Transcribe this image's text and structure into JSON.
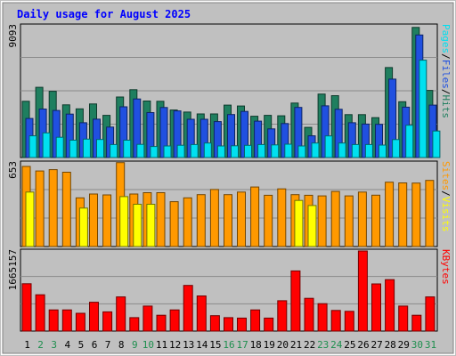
{
  "chart_data": [
    {
      "type": "bar",
      "title": "Daily usage for August 2025",
      "ymax_label": "9093",
      "ylim": [
        0,
        9093
      ],
      "categories": [
        "1",
        "2",
        "3",
        "4",
        "5",
        "6",
        "7",
        "8",
        "9",
        "10",
        "11",
        "12",
        "13",
        "14",
        "15",
        "16",
        "17",
        "18",
        "19",
        "20",
        "21",
        "22",
        "23",
        "24",
        "25",
        "26",
        "27",
        "28",
        "29",
        "30",
        "31"
      ],
      "series": [
        {
          "name": "Hits",
          "color": "#1f7f5f",
          "values": [
            3880,
            4850,
            4570,
            3640,
            3360,
            3700,
            2910,
            4180,
            4680,
            3900,
            3880,
            3280,
            3140,
            3010,
            3010,
            3620,
            3560,
            2850,
            2910,
            2880,
            3760,
            2080,
            4380,
            4270,
            2960,
            2960,
            2750,
            6210,
            3850,
            8980,
            4630
          ]
        },
        {
          "name": "Files",
          "color": "#2050e0",
          "values": [
            2700,
            3350,
            3250,
            3000,
            2400,
            2650,
            2100,
            3500,
            4040,
            3100,
            3450,
            3220,
            2640,
            2640,
            2480,
            2970,
            3180,
            2510,
            1980,
            2350,
            3460,
            1500,
            3570,
            3330,
            2400,
            2310,
            2290,
            5410,
            3480,
            8460,
            3620
          ]
        },
        {
          "name": "Pages",
          "color": "#00e0f0",
          "values": [
            1500,
            1700,
            1400,
            1200,
            1270,
            1250,
            900,
            1200,
            910,
            760,
            800,
            850,
            900,
            1000,
            800,
            810,
            840,
            900,
            870,
            920,
            800,
            1000,
            1490,
            1000,
            900,
            900,
            860,
            1240,
            2230,
            6720,
            1830
          ]
        }
      ],
      "series_labels": [
        "Pages",
        "Files",
        "Hits"
      ],
      "sep": "/"
    },
    {
      "type": "bar",
      "ymax_label": "653",
      "ylim": [
        0,
        653
      ],
      "categories": [
        "1",
        "2",
        "3",
        "4",
        "5",
        "6",
        "7",
        "8",
        "9",
        "10",
        "11",
        "12",
        "13",
        "14",
        "15",
        "16",
        "17",
        "18",
        "19",
        "20",
        "21",
        "22",
        "23",
        "24",
        "25",
        "26",
        "27",
        "28",
        "29",
        "30",
        "31"
      ],
      "series": [
        {
          "name": "Sites",
          "color": "#ff9900",
          "values": [
            625,
            590,
            600,
            580,
            380,
            410,
            403,
            655,
            410,
            420,
            420,
            350,
            380,
            405,
            445,
            405,
            425,
            465,
            400,
            450,
            405,
            400,
            395,
            430,
            395,
            425,
            401,
            502,
            497,
            495,
            516
          ]
        },
        {
          "name": "Visits",
          "color": "#ffff00",
          "values": [
            425,
            0,
            0,
            0,
            300,
            0,
            0,
            390,
            330,
            330,
            0,
            0,
            0,
            0,
            0,
            0,
            0,
            0,
            0,
            0,
            360,
            320,
            0,
            0,
            0,
            0,
            0,
            0,
            0,
            0,
            0
          ]
        }
      ],
      "series_labels": [
        "Sites",
        "Visits"
      ],
      "sep": "/"
    },
    {
      "type": "bar",
      "ymax_label": "1665157",
      "ylim": [
        0,
        1665157
      ],
      "categories": [
        "1",
        "2",
        "3",
        "4",
        "5",
        "6",
        "7",
        "8",
        "9",
        "10",
        "11",
        "12",
        "13",
        "14",
        "15",
        "16",
        "17",
        "18",
        "19",
        "20",
        "21",
        "22",
        "23",
        "24",
        "25",
        "26",
        "27",
        "28",
        "29",
        "30",
        "31"
      ],
      "series": [
        {
          "name": "KBytes",
          "color": "#ff0000",
          "values": [
            985000,
            755000,
            440000,
            440000,
            370000,
            600000,
            400000,
            710000,
            280000,
            520000,
            330000,
            440000,
            950000,
            730000,
            320000,
            280000,
            270000,
            440000,
            270000,
            630000,
            1250000,
            680000,
            570000,
            430000,
            410000,
            1665157,
            980000,
            1070000,
            520000,
            330000,
            710000
          ]
        }
      ],
      "series_labels": [
        "KBytes"
      ],
      "sep": ""
    }
  ],
  "colors": {
    "frame": "#c0c0c0",
    "plot_bg": "#c0c0c0",
    "title": "#0000ff",
    "weekday_label": "#000000",
    "weekend_label": "#1f8f4f"
  },
  "weekend_days": [
    "2",
    "3",
    "9",
    "10",
    "16",
    "17",
    "23",
    "24",
    "30",
    "31"
  ]
}
